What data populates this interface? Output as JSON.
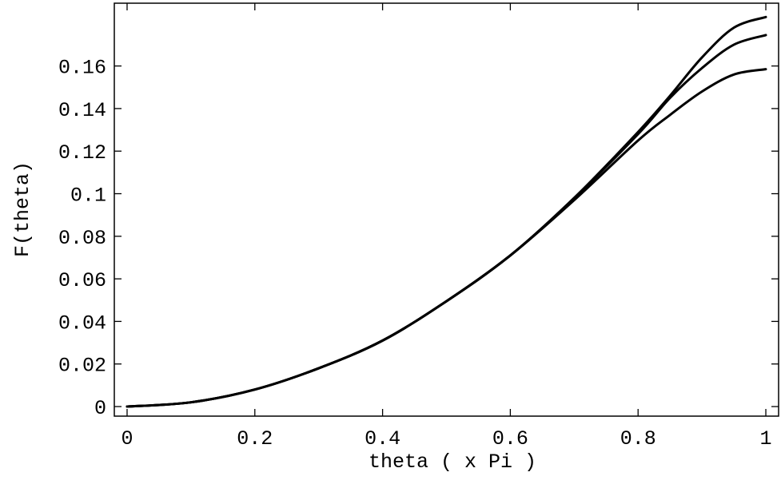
{
  "chart_data": {
    "type": "line",
    "title": "",
    "xlabel": "theta ( x Pi )",
    "ylabel": "F(theta)",
    "xlim": [
      -0.02,
      1.02
    ],
    "ylim": [
      -0.0045,
      0.1895
    ],
    "x_ticks": [
      0,
      0.2,
      0.4,
      0.6,
      0.8,
      1
    ],
    "x_tick_labels": [
      "0",
      "0.2",
      "0.4",
      "0.6",
      "0.8",
      "1"
    ],
    "y_ticks": [
      0,
      0.02,
      0.04,
      0.06,
      0.08,
      0.1,
      0.12,
      0.14,
      0.16
    ],
    "y_tick_labels": [
      "0",
      "0.02",
      "0.04",
      "0.06",
      "0.08",
      "0.1",
      "0.12",
      "0.14",
      "0.16"
    ],
    "grid": false,
    "legend": "none",
    "series": [
      {
        "x": [
          0,
          0.1,
          0.2,
          0.3,
          0.4,
          0.5,
          0.6,
          0.7,
          0.8,
          0.85,
          0.9,
          0.95,
          1.0
        ],
        "y": [
          0,
          0.002,
          0.008,
          0.018,
          0.031,
          0.0495,
          0.071,
          0.098,
          0.129,
          0.146,
          0.164,
          0.178,
          0.183
        ]
      },
      {
        "x": [
          0,
          0.1,
          0.2,
          0.3,
          0.4,
          0.5,
          0.6,
          0.7,
          0.8,
          0.85,
          0.9,
          0.95,
          1.0
        ],
        "y": [
          0,
          0.002,
          0.008,
          0.018,
          0.031,
          0.0495,
          0.071,
          0.098,
          0.128,
          0.145,
          0.159,
          0.17,
          0.1745
        ]
      },
      {
        "x": [
          0,
          0.1,
          0.2,
          0.3,
          0.4,
          0.5,
          0.6,
          0.7,
          0.8,
          0.85,
          0.9,
          0.95,
          1.0
        ],
        "y": [
          0,
          0.002,
          0.008,
          0.018,
          0.031,
          0.0495,
          0.071,
          0.097,
          0.125,
          0.137,
          0.148,
          0.156,
          0.1585
        ]
      }
    ]
  }
}
